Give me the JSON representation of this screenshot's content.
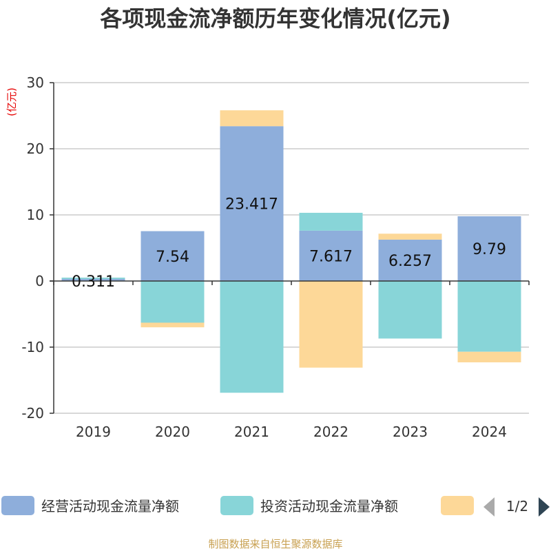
{
  "title": "各项现金流净额历年变化情况(亿元)",
  "source": "制图数据来自恒生聚源数据库",
  "legend_page": "1/2",
  "chart_data": {
    "type": "bar",
    "stacked": true,
    "categories": [
      "2019",
      "2020",
      "2021",
      "2022",
      "2023",
      "2024"
    ],
    "ylabel": "(亿元)",
    "ylim": [
      -20,
      30
    ],
    "yticks": [
      30,
      20,
      10,
      0,
      -10,
      -20
    ],
    "grid": true,
    "legend_position": "bottom",
    "series": [
      {
        "name": "经营活动现金流量净额",
        "color": "#8eaedb",
        "values": [
          0.311,
          7.54,
          23.417,
          7.617,
          6.257,
          9.79
        ],
        "labels": [
          "0.311",
          "7.54",
          "23.417",
          "7.617",
          "6.257",
          "9.79"
        ]
      },
      {
        "name": "投资活动现金流量净额",
        "color": "#88d5d8",
        "values": [
          0.2,
          -6.3,
          -16.9,
          2.7,
          -8.7,
          -10.7
        ]
      },
      {
        "name": "",
        "color": "#fdd898",
        "values": [
          0.0,
          -0.7,
          2.4,
          -13.1,
          0.9,
          -1.6
        ]
      }
    ]
  }
}
